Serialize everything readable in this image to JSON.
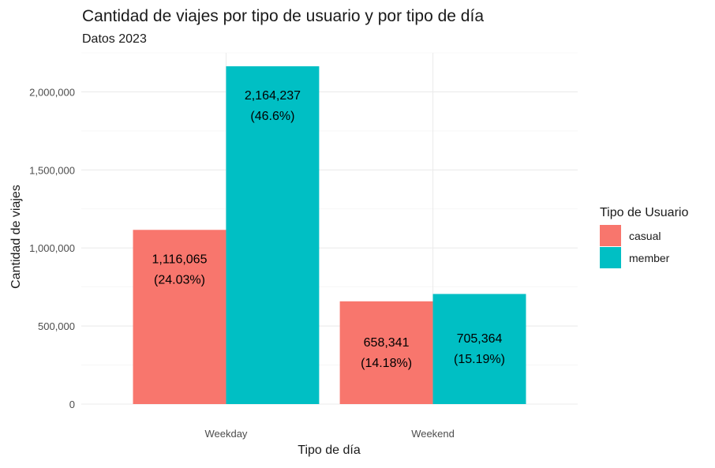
{
  "chart_data": {
    "type": "bar",
    "title": "Cantidad de viajes por tipo de usuario y por tipo de día",
    "subtitle": "Datos 2023",
    "xlabel": "Tipo de día",
    "ylabel": "Cantidad de viajes",
    "categories": [
      "Weekday",
      "Weekend"
    ],
    "series": [
      {
        "name": "casual",
        "color": "#F8766D",
        "values": [
          1116065,
          658341
        ],
        "labels": [
          "1,116,065",
          "658,341"
        ],
        "pct": [
          "(24.03%)",
          "(14.18%)"
        ]
      },
      {
        "name": "member",
        "color": "#00BFC4",
        "values": [
          2164237,
          705364
        ],
        "labels": [
          "2,164,237",
          "705,364"
        ],
        "pct": [
          "(46.6%)",
          "(15.19%)"
        ]
      }
    ],
    "ylim": [
      0,
      2250000
    ],
    "yticks": [
      0,
      500000,
      1000000,
      1500000,
      2000000
    ],
    "ytick_labels": [
      "0",
      "500,000",
      "1,000,000",
      "1,500,000",
      "2,000,000"
    ],
    "legend": {
      "title": "Tipo de Usuario",
      "position": "right"
    },
    "grid": true
  }
}
